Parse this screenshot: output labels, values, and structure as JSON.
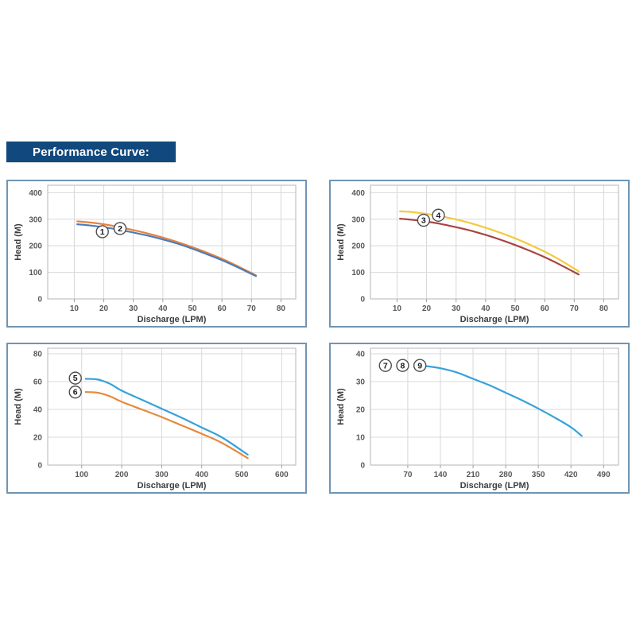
{
  "page": {
    "title": "Performance Curve:",
    "title_bg": "#11497e",
    "title_color": "#ffffff",
    "panel_border_color": "#7095b4",
    "background": "#ffffff"
  },
  "chart_style": {
    "plot_bg": "#ffffff",
    "grid_color": "#d8d8d8",
    "plot_border_color": "#c2c2c2",
    "tick_color": "#9e9e9e",
    "tick_label_color": "#595959",
    "axis_title_color": "#3d3d3d",
    "annotation_ring_color": "#4d4d4d",
    "annotation_text_color": "#1a1a1a"
  },
  "chart_data": [
    {
      "type": "line",
      "title": "",
      "xlabel": "Discharge (LPM)",
      "ylabel": "Head (M)",
      "xlim": [
        1,
        85
      ],
      "ylim": [
        0,
        428
      ],
      "xticks": [
        10,
        20,
        30,
        40,
        50,
        60,
        70,
        80
      ],
      "yticks": [
        0,
        100,
        200,
        300,
        400
      ],
      "grid": true,
      "legend": "none",
      "series": [
        {
          "name": "1",
          "color": "#e8823c",
          "points": [
            [
              11,
              292
            ],
            [
              15,
              288
            ],
            [
              20,
              281
            ],
            [
              25,
              271
            ],
            [
              30,
              259
            ],
            [
              35,
              246
            ],
            [
              40,
              231
            ],
            [
              45,
              214
            ],
            [
              50,
              195
            ],
            [
              55,
              174
            ],
            [
              60,
              151
            ],
            [
              65,
              125
            ],
            [
              71.5,
              89
            ]
          ]
        },
        {
          "name": "2",
          "color": "#4b7cba",
          "points": [
            [
              11,
              281
            ],
            [
              15,
              277
            ],
            [
              20,
              270
            ],
            [
              25,
              261
            ],
            [
              30,
              250
            ],
            [
              35,
              238
            ],
            [
              40,
              224
            ],
            [
              45,
              208
            ],
            [
              50,
              189
            ],
            [
              55,
              168
            ],
            [
              60,
              146
            ],
            [
              65,
              121
            ],
            [
              71.5,
              86
            ]
          ]
        }
      ],
      "annotations": [
        {
          "label": "1",
          "x": 19.5,
          "y": 253
        },
        {
          "label": "2",
          "x": 25.5,
          "y": 265
        }
      ]
    },
    {
      "type": "line",
      "title": "",
      "xlabel": "Discharge (LPM)",
      "ylabel": "Head (M)",
      "xlim": [
        1,
        85
      ],
      "ylim": [
        0,
        428
      ],
      "xticks": [
        10,
        20,
        30,
        40,
        50,
        60,
        70,
        80
      ],
      "yticks": [
        0,
        100,
        200,
        300,
        400
      ],
      "grid": true,
      "legend": "none",
      "series": [
        {
          "name": "4",
          "color": "#f3ca3e",
          "points": [
            [
              11,
              330
            ],
            [
              15,
              327
            ],
            [
              20,
              320
            ],
            [
              25,
              311
            ],
            [
              30,
              299
            ],
            [
              35,
              285
            ],
            [
              40,
              268
            ],
            [
              45,
              249
            ],
            [
              50,
              228
            ],
            [
              55,
              204
            ],
            [
              60,
              178
            ],
            [
              65,
              148
            ],
            [
              71.5,
              104
            ]
          ]
        },
        {
          "name": "3",
          "color": "#a84441",
          "points": [
            [
              11,
              302
            ],
            [
              15,
              298
            ],
            [
              20,
              291
            ],
            [
              25,
              282
            ],
            [
              30,
              270
            ],
            [
              35,
              257
            ],
            [
              40,
              241
            ],
            [
              45,
              223
            ],
            [
              50,
              203
            ],
            [
              55,
              181
            ],
            [
              60,
              157
            ],
            [
              65,
              130
            ],
            [
              71.5,
              92
            ]
          ]
        }
      ],
      "annotations": [
        {
          "label": "3",
          "x": 19,
          "y": 296
        },
        {
          "label": "4",
          "x": 24,
          "y": 315
        }
      ]
    },
    {
      "type": "line",
      "title": "",
      "xlabel": "Discharge (LPM)",
      "ylabel": "Head (M)",
      "xlim": [
        15,
        635
      ],
      "ylim": [
        0,
        84
      ],
      "xticks": [
        100,
        200,
        300,
        400,
        500,
        600
      ],
      "yticks": [
        0,
        20,
        40,
        60,
        80
      ],
      "grid": true,
      "legend": "none",
      "series": [
        {
          "name": "5",
          "color": "#36a2d9",
          "points": [
            [
              110,
              62
            ],
            [
              140,
              61.5
            ],
            [
              170,
              58.5
            ],
            [
              200,
              53.5
            ],
            [
              250,
              47
            ],
            [
              300,
              40.5
            ],
            [
              350,
              34
            ],
            [
              400,
              27
            ],
            [
              450,
              20
            ],
            [
              515,
              7.5
            ]
          ]
        },
        {
          "name": "6",
          "color": "#e58a3f",
          "points": [
            [
              110,
              52.5
            ],
            [
              140,
              52
            ],
            [
              170,
              49.5
            ],
            [
              200,
              45.5
            ],
            [
              250,
              40
            ],
            [
              300,
              34.5
            ],
            [
              350,
              28.5
            ],
            [
              400,
              22.5
            ],
            [
              450,
              16
            ],
            [
              515,
              5
            ]
          ]
        }
      ],
      "annotations": [
        {
          "label": "5",
          "x": 84,
          "y": 62.5
        },
        {
          "label": "6",
          "x": 84,
          "y": 52.5
        }
      ]
    },
    {
      "type": "line",
      "title": "",
      "xlabel": "Discharge (LPM)",
      "ylabel": "Head (M)",
      "xlim": [
        -10,
        522
      ],
      "ylim": [
        0,
        42
      ],
      "xticks": [
        70,
        140,
        210,
        280,
        350,
        420,
        490
      ],
      "yticks": [
        0,
        10,
        20,
        30,
        40
      ],
      "grid": true,
      "legend": "none",
      "series": [
        {
          "name": "7-8-9",
          "color": "#36a2d9",
          "points": [
            [
              108,
              35.6
            ],
            [
              140,
              34.8
            ],
            [
              175,
              33.3
            ],
            [
              210,
              31
            ],
            [
              245,
              28.7
            ],
            [
              280,
              26
            ],
            [
              315,
              23.3
            ],
            [
              350,
              20.3
            ],
            [
              385,
              17.1
            ],
            [
              420,
              13.6
            ],
            [
              443,
              10.5
            ]
          ]
        }
      ],
      "annotations": [
        {
          "label": "7",
          "x": 22,
          "y": 35.8
        },
        {
          "label": "8",
          "x": 59,
          "y": 35.8
        },
        {
          "label": "9",
          "x": 96,
          "y": 35.8
        }
      ]
    }
  ]
}
